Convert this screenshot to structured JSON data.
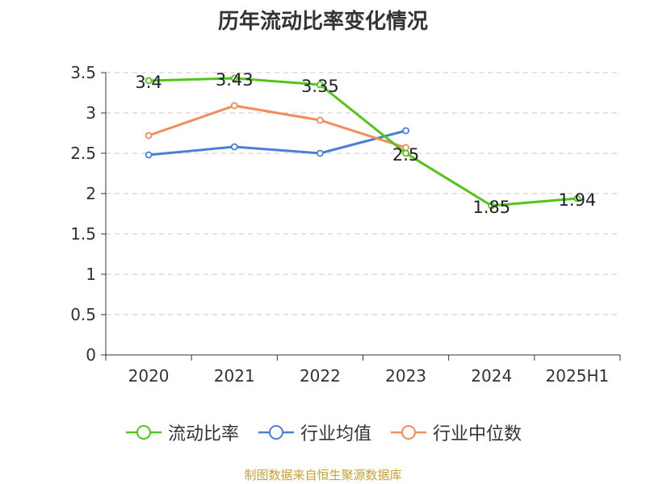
{
  "title": "历年流动比率变化情况",
  "source": "制图数据来自恒生聚源数据库",
  "chart_data": {
    "type": "line",
    "categories": [
      "2020",
      "2021",
      "2022",
      "2023",
      "2024",
      "2025H1"
    ],
    "ylim": [
      0,
      3.5
    ],
    "yticks": [
      "0",
      "0.5",
      "1",
      "1.5",
      "2",
      "2.5",
      "3",
      "3.5"
    ],
    "grid": true,
    "legend_position": "bottom",
    "series": [
      {
        "name": "流动比率",
        "color": "#52c41a",
        "values": [
          3.4,
          3.43,
          3.35,
          2.5,
          1.85,
          1.94
        ],
        "labels": [
          "3.4",
          "3.43",
          "3.35",
          "2.5",
          "1.85",
          "1.94"
        ]
      },
      {
        "name": "行业均值",
        "color": "#4a7fd6",
        "values": [
          2.48,
          2.58,
          2.5,
          2.78,
          null,
          null
        ]
      },
      {
        "name": "行业中位数",
        "color": "#f28c5a",
        "values": [
          2.72,
          3.09,
          2.91,
          2.57,
          null,
          null
        ]
      }
    ]
  }
}
